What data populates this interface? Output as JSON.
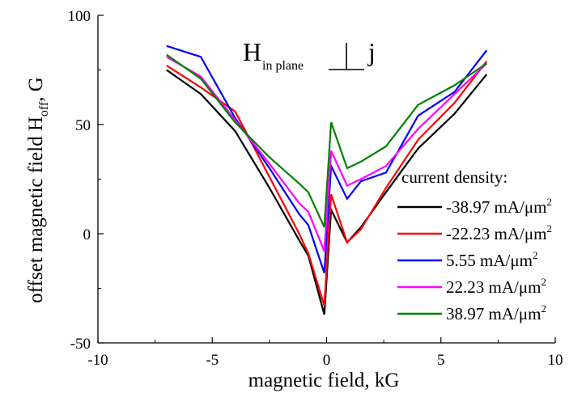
{
  "chart_data": {
    "type": "line",
    "title": "",
    "annotation": {
      "main": "H",
      "subscript": "in plane",
      "symbol": "j"
    },
    "xlabel": "magnetic field, kG",
    "ylabel_main": "offset magnetic field H",
    "ylabel_sub": "off",
    "ylabel_suffix": ", G",
    "xlim": [
      -10,
      10
    ],
    "ylim": [
      -50,
      100
    ],
    "xticks": [
      -10,
      -5,
      0,
      5,
      10
    ],
    "yticks": [
      -50,
      0,
      50,
      100
    ],
    "grid": false,
    "legend_title": "current density:",
    "legend_position": "right",
    "x": [
      -7,
      -5.5,
      -4,
      -2.5,
      -1.2,
      -0.8,
      -0.1,
      0.2,
      0.9,
      1.5,
      2.6,
      4,
      5.6,
      7
    ],
    "series": [
      {
        "name": "-38.97 mA/μm",
        "name_sup": "2",
        "color": "#000000",
        "y": [
          75,
          64,
          47,
          21,
          -3,
          -10,
          -37,
          11,
          -4,
          3,
          19,
          39,
          55,
          73
        ]
      },
      {
        "name": "-22.23 mA/μm",
        "name_sup": "2",
        "color": "#ff0000",
        "y": [
          77,
          67,
          56,
          26,
          0,
          -9,
          -33,
          18,
          -4,
          2,
          21,
          43,
          60,
          79
        ]
      },
      {
        "name": "5.55 mA/μm",
        "name_sup": "2",
        "color": "#0000ff",
        "y": [
          86,
          81,
          53,
          30,
          9,
          4,
          -18,
          31,
          16,
          24,
          28,
          54,
          65,
          84
        ]
      },
      {
        "name": "22.23  mA/μm",
        "name_sup": "2",
        "color": "#ff00ff",
        "y": [
          81,
          72,
          52,
          32,
          14,
          10,
          -8,
          38,
          22,
          25,
          31,
          48,
          64,
          78
        ]
      },
      {
        "name": "38.97 mA/μm",
        "name_sup": "2",
        "color": "#008000",
        "y": [
          82,
          71,
          51,
          35,
          23,
          19,
          3,
          51,
          30,
          33,
          40,
          59,
          68,
          78
        ]
      }
    ]
  }
}
